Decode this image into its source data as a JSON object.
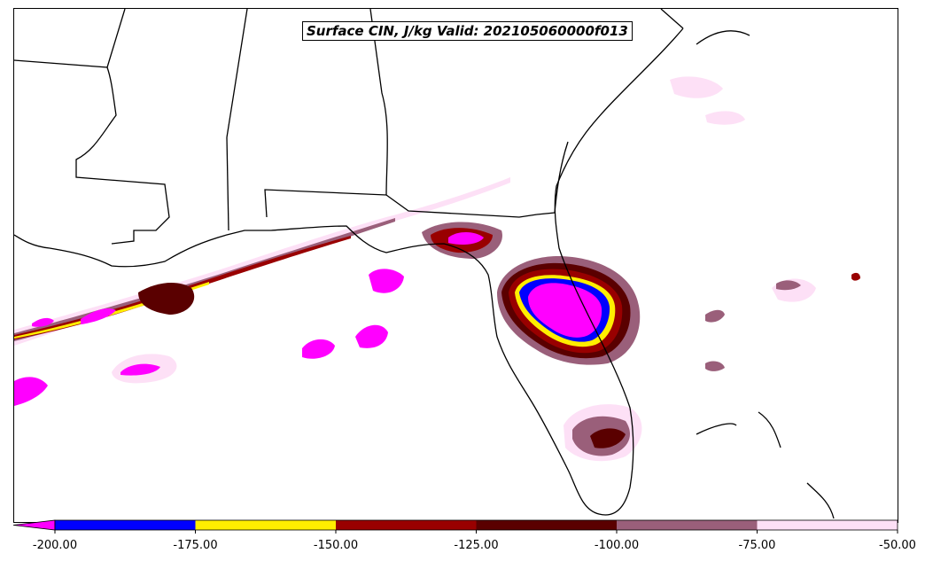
{
  "title": "Surface CIN, J/kg Valid: 202105060000f013",
  "colorbar": {
    "bins": [
      {
        "from": -200,
        "to": -175,
        "color": "#0000ff"
      },
      {
        "from": -175,
        "to": -150,
        "color": "#ffee00"
      },
      {
        "from": -150,
        "to": -125,
        "color": "#990000"
      },
      {
        "from": -125,
        "to": -100,
        "color": "#5a0000"
      },
      {
        "from": -100,
        "to": -75,
        "color": "#9a5f7a"
      },
      {
        "from": -75,
        "to": -50,
        "color": "#fde0f6"
      }
    ],
    "extend_min_color": "#ff00ff",
    "tick_labels": [
      "-200.00",
      "-175.00",
      "-150.00",
      "-125.00",
      "-100.00",
      "-75.00",
      "-50.00"
    ]
  }
}
